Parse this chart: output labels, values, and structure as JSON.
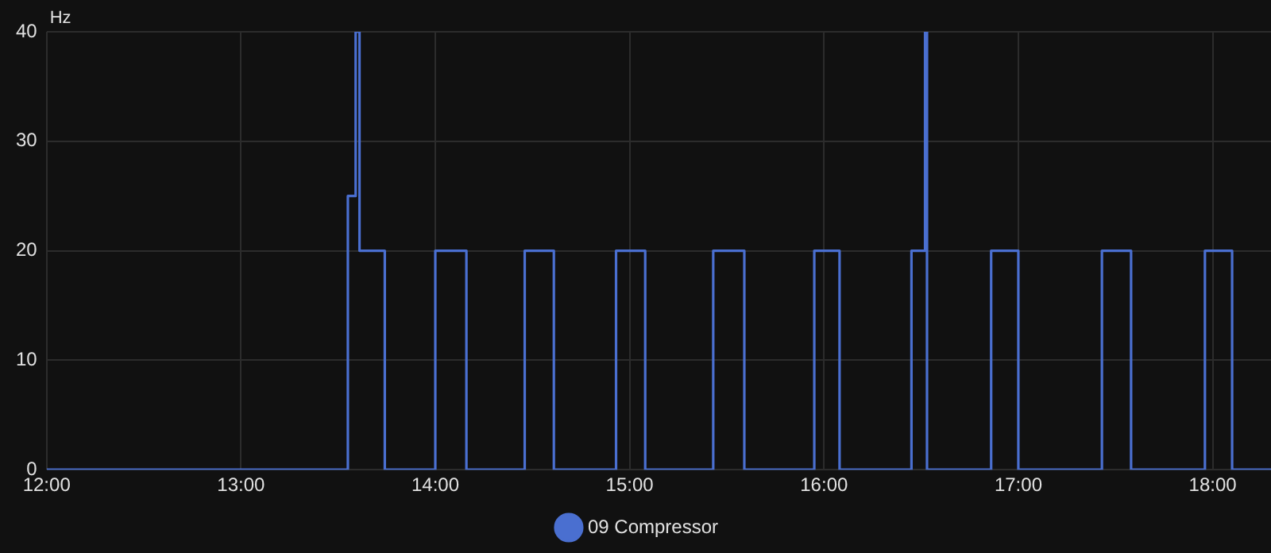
{
  "chart_data": {
    "type": "step",
    "ylabel": "Hz",
    "x": [
      12,
      13.55,
      13.59,
      13.61,
      13.74,
      14.0,
      14.16,
      14.46,
      14.61,
      14.93,
      15.08,
      15.43,
      15.59,
      15.95,
      16.08,
      16.45,
      16.52,
      16.53,
      16.86,
      17.0,
      17.43,
      17.58,
      17.96,
      18.1,
      18.3
    ],
    "series": [
      {
        "name": "09 Compressor",
        "color": "#4a6fd0",
        "values": [
          0,
          25,
          40,
          20,
          0,
          20,
          0,
          20,
          0,
          20,
          0,
          20,
          0,
          20,
          0,
          20,
          40,
          0,
          20,
          0,
          20,
          0,
          20,
          0,
          0
        ]
      }
    ],
    "xlim": [
      12,
      18.3
    ],
    "xticks": [
      {
        "value": 12,
        "label": "12:00"
      },
      {
        "value": 13,
        "label": "13:00"
      },
      {
        "value": 14,
        "label": "14:00"
      },
      {
        "value": 15,
        "label": "15:00"
      },
      {
        "value": 16,
        "label": "16:00"
      },
      {
        "value": 17,
        "label": "17:00"
      },
      {
        "value": 18,
        "label": "18:00"
      }
    ],
    "ylim": [
      0,
      40
    ],
    "yticks": [
      0,
      10,
      20,
      30,
      40
    ],
    "grid": true,
    "legend": "bottom",
    "marker": "none",
    "line_style": "solid"
  }
}
